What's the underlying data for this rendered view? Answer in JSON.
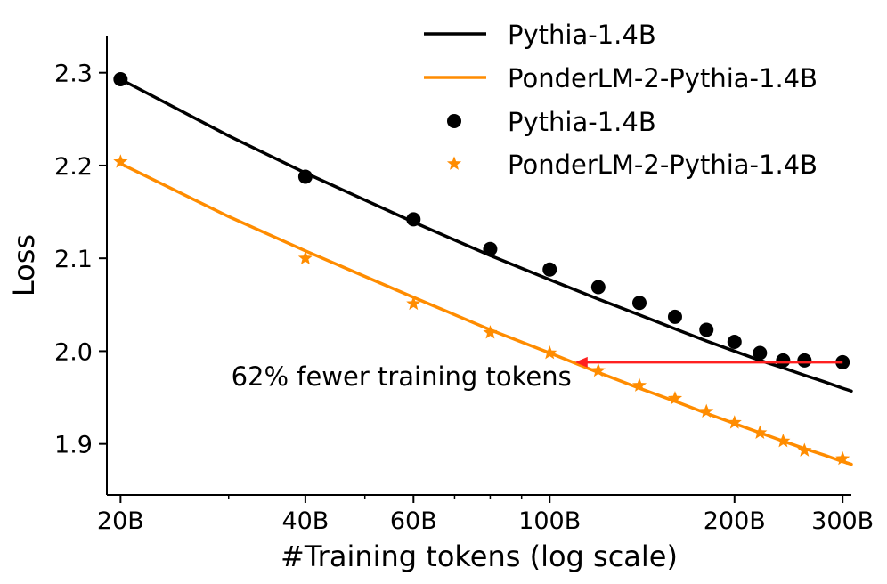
{
  "chart_data": {
    "type": "line",
    "title": "",
    "xlabel": "#Training tokens (log scale)",
    "ylabel": "Loss",
    "xscale": "log",
    "xlim": [
      19,
      310
    ],
    "ylim": [
      1.845,
      2.34
    ],
    "grid": false,
    "legend_position": "top-right",
    "x_ticks": [
      {
        "value": 20,
        "label": "20B"
      },
      {
        "value": 40,
        "label": "40B"
      },
      {
        "value": 60,
        "label": "60B"
      },
      {
        "value": 100,
        "label": "100B"
      },
      {
        "value": 200,
        "label": "200B"
      },
      {
        "value": 300,
        "label": "300B"
      }
    ],
    "y_ticks": [
      {
        "value": 1.9,
        "label": "1.9"
      },
      {
        "value": 2.0,
        "label": "2.0"
      },
      {
        "value": 2.1,
        "label": "2.1"
      },
      {
        "value": 2.2,
        "label": "2.2"
      },
      {
        "value": 2.3,
        "label": "2.3"
      }
    ],
    "series": [
      {
        "name": "Pythia-1.4B",
        "kind": "fit-line",
        "color": "#000000",
        "x": [
          20,
          30,
          40,
          60,
          80,
          100,
          120,
          140,
          160,
          180,
          200,
          220,
          240,
          260,
          280,
          300,
          310
        ],
        "values": [
          2.293,
          2.232,
          2.192,
          2.139,
          2.103,
          2.077,
          2.056,
          2.039,
          2.024,
          2.011,
          2.0,
          1.99,
          1.982,
          1.974,
          1.967,
          1.96,
          1.957
        ]
      },
      {
        "name": "PonderLM-2-Pythia-1.4B",
        "kind": "fit-line",
        "color": "#ff8c00",
        "x": [
          20,
          30,
          40,
          60,
          80,
          100,
          120,
          140,
          160,
          180,
          200,
          220,
          240,
          260,
          280,
          300,
          310
        ],
        "values": [
          2.202,
          2.145,
          2.108,
          2.058,
          2.023,
          1.998,
          1.977,
          1.96,
          1.946,
          1.933,
          1.922,
          1.912,
          1.903,
          1.895,
          1.888,
          1.881,
          1.878
        ]
      },
      {
        "name": "Pythia-1.4B",
        "kind": "markers",
        "marker": "circle",
        "color": "#000000",
        "x": [
          20,
          40,
          60,
          80,
          100,
          120,
          140,
          160,
          180,
          200,
          220,
          240,
          260,
          300
        ],
        "values": [
          2.293,
          2.188,
          2.142,
          2.11,
          2.088,
          2.069,
          2.052,
          2.037,
          2.023,
          2.01,
          1.998,
          1.99,
          1.99,
          1.988
        ]
      },
      {
        "name": "PonderLM-2-Pythia-1.4B",
        "kind": "markers",
        "marker": "star",
        "color": "#ff8c00",
        "x": [
          20,
          40,
          60,
          80,
          100,
          120,
          140,
          160,
          180,
          200,
          220,
          240,
          260,
          300
        ],
        "values": [
          2.204,
          2.1,
          2.051,
          2.02,
          1.998,
          1.979,
          1.963,
          1.949,
          1.935,
          1.923,
          1.912,
          1.903,
          1.893,
          1.884
        ]
      }
    ],
    "annotations": [
      {
        "text": "62% fewer training tokens",
        "arrow_from": {
          "x": 300,
          "y": 1.988
        },
        "arrow_to": {
          "x": 110,
          "y": 1.988
        },
        "color": "#ff2020"
      }
    ]
  }
}
